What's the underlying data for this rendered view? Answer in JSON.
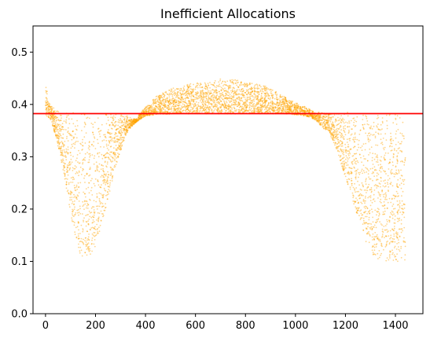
{
  "chart_data": {
    "type": "scatter",
    "title": "Inefficient Allocations",
    "xlabel": "",
    "ylabel": "",
    "xlim": [
      -50,
      1510
    ],
    "ylim": [
      0.0,
      0.55
    ],
    "x_ticks": [
      0,
      200,
      400,
      600,
      800,
      1000,
      1200,
      1400
    ],
    "x_tick_labels": [
      "0",
      "200",
      "400",
      "600",
      "800",
      "1000",
      "1200",
      "1400"
    ],
    "y_ticks": [
      0.0,
      0.1,
      0.2,
      0.3,
      0.4,
      0.5
    ],
    "y_tick_labels": [
      "0.0",
      "0.1",
      "0.2",
      "0.3",
      "0.4",
      "0.5"
    ],
    "grid": false,
    "series": [
      {
        "marker_color": "#ffa500",
        "band": {
          "x_range": [
            0,
            1440
          ],
          "x": [
            0,
            20,
            40,
            60,
            80,
            100,
            120,
            140,
            160,
            180,
            200,
            220,
            240,
            260,
            280,
            300,
            320,
            340,
            360,
            380,
            400,
            440,
            480,
            520,
            560,
            600,
            640,
            680,
            720,
            760,
            800,
            840,
            880,
            920,
            960,
            1000,
            1040,
            1060,
            1080,
            1100,
            1120,
            1140,
            1160,
            1180,
            1200,
            1220,
            1240,
            1260,
            1280,
            1300,
            1320,
            1340,
            1360,
            1380,
            1400,
            1420,
            1440
          ],
          "y_low": [
            0.38,
            0.37,
            0.34,
            0.3,
            0.25,
            0.19,
            0.14,
            0.11,
            0.1,
            0.11,
            0.13,
            0.16,
            0.2,
            0.24,
            0.28,
            0.31,
            0.34,
            0.355,
            0.365,
            0.372,
            0.378,
            0.38,
            0.381,
            0.382,
            0.382,
            0.382,
            0.382,
            0.382,
            0.382,
            0.382,
            0.382,
            0.382,
            0.382,
            0.382,
            0.382,
            0.38,
            0.378,
            0.375,
            0.37,
            0.36,
            0.35,
            0.34,
            0.32,
            0.29,
            0.26,
            0.23,
            0.2,
            0.17,
            0.14,
            0.12,
            0.105,
            0.1,
            0.1,
            0.1,
            0.1,
            0.1,
            0.1
          ],
          "y_high": [
            0.44,
            0.4,
            0.39,
            0.385,
            0.385,
            0.385,
            0.385,
            0.385,
            0.385,
            0.385,
            0.385,
            0.385,
            0.385,
            0.385,
            0.385,
            0.385,
            0.38,
            0.375,
            0.372,
            0.385,
            0.395,
            0.415,
            0.425,
            0.433,
            0.438,
            0.442,
            0.446,
            0.448,
            0.45,
            0.448,
            0.444,
            0.44,
            0.435,
            0.425,
            0.414,
            0.405,
            0.395,
            0.39,
            0.385,
            0.385,
            0.385,
            0.385,
            0.385,
            0.385,
            0.385,
            0.385,
            0.385,
            0.385,
            0.385,
            0.385,
            0.385,
            0.385,
            0.385,
            0.385,
            0.385,
            0.38,
            0.36
          ]
        }
      }
    ],
    "threshold_line": {
      "y": 0.3825,
      "color": "#ff0000"
    }
  }
}
